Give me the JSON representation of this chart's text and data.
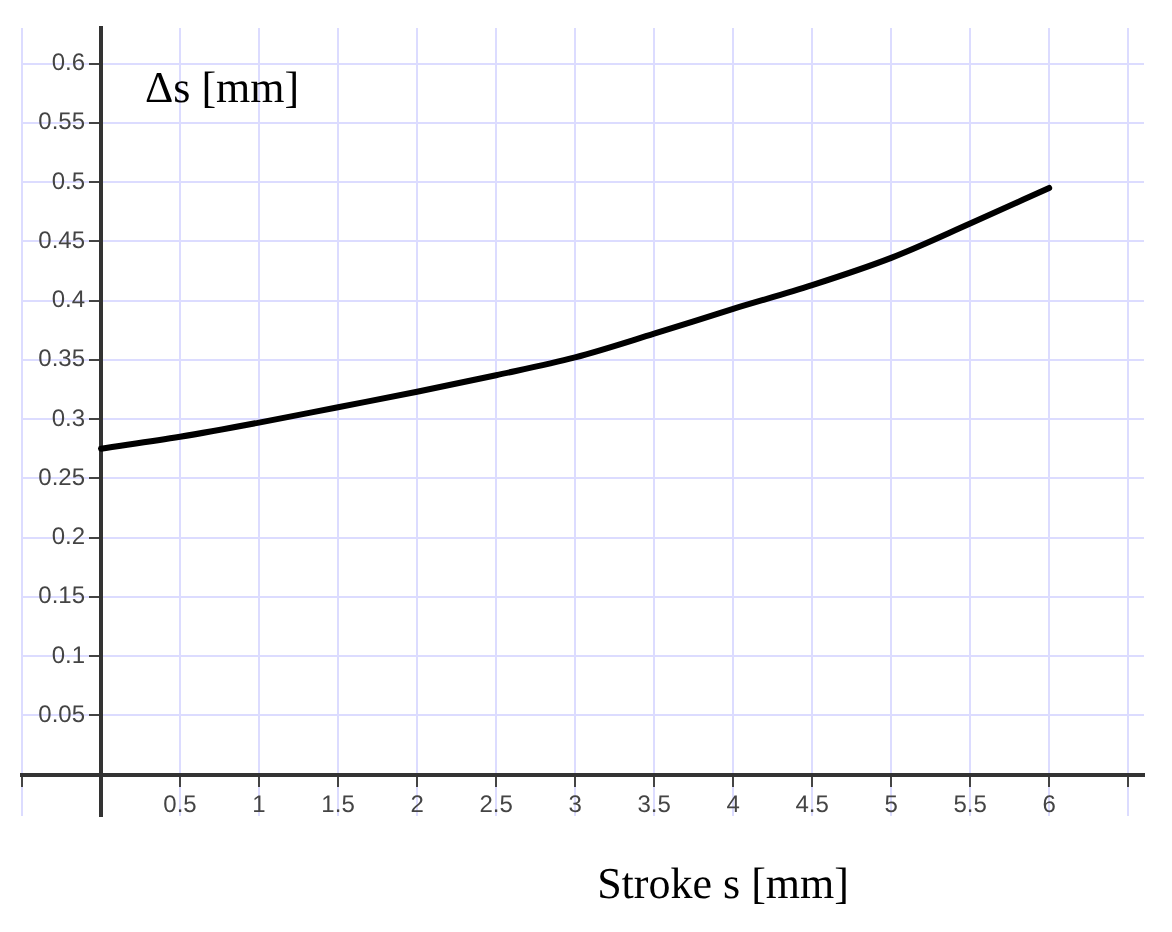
{
  "chart_data": {
    "type": "line",
    "xlabel": "Stroke s [mm]",
    "ylabel": "Δs [mm]",
    "x": [
      0,
      0.5,
      1,
      1.5,
      2,
      2.5,
      3,
      3.5,
      4,
      4.5,
      5,
      5.5,
      6
    ],
    "series": [
      {
        "color": "#000000",
        "values": [
          0.275,
          0.285,
          0.297,
          0.31,
          0.323,
          0.337,
          0.352,
          0.372,
          0.393,
          0.413,
          0.436,
          0.465,
          0.495
        ]
      }
    ],
    "xlim": [
      -0.5,
      6.6
    ],
    "ylim": [
      -0.035,
      0.63
    ],
    "xticks": [
      {
        "value": -0.5,
        "label": null
      },
      {
        "value": 0,
        "label": null
      },
      0.5,
      1,
      1.5,
      2,
      2.5,
      3,
      3.5,
      4,
      4.5,
      5,
      5.5,
      6,
      {
        "value": 6.5,
        "label": null
      }
    ],
    "yticks": [
      {
        "value": 0,
        "label": null
      },
      0.05,
      0.1,
      0.15,
      0.2,
      0.25,
      0.3,
      0.35,
      0.4,
      0.45,
      0.5,
      0.55,
      0.6
    ],
    "grid": true,
    "legend": false,
    "marker": "none",
    "line_style": "solid"
  }
}
